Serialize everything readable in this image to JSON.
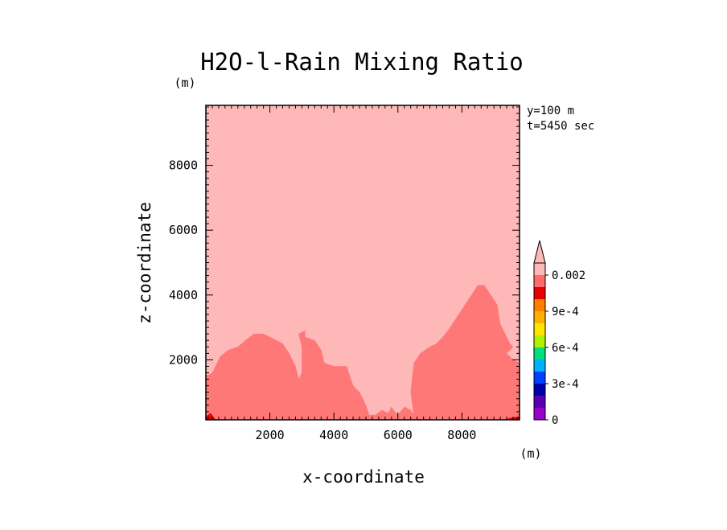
{
  "chart_data": {
    "type": "heatmap",
    "title": "H2O-l-Rain Mixing Ratio",
    "xlabel": "x-coordinate",
    "ylabel": "z-coordinate",
    "x_unit": "(m)",
    "y_unit": "(m)",
    "annotations": [
      "y=100 m",
      "t=5450 sec"
    ],
    "xlim": [
      0,
      9800
    ],
    "ylim": [
      150,
      9850
    ],
    "x_ticks": [
      2000,
      4000,
      6000,
      8000
    ],
    "y_ticks": [
      2000,
      4000,
      6000,
      8000
    ],
    "x_tick_labels": [
      "2000",
      "4000",
      "6000",
      "8000"
    ],
    "y_tick_labels": [
      "2000",
      "4000",
      "6000",
      "8000"
    ],
    "colorbar": {
      "levels": [
        0,
        0.0001,
        0.0002,
        0.0003,
        0.0004,
        0.0005,
        0.0006,
        0.0007,
        0.0008,
        0.0009,
        0.001,
        0.0015,
        0.002
      ],
      "colors": [
        "#9900cc",
        "#5a00b0",
        "#0000a8",
        "#0040ff",
        "#00b0ff",
        "#00e080",
        "#b0f000",
        "#ffe600",
        "#ffb000",
        "#ff7f00",
        "#e60000",
        "#ff6a6a",
        "#ffb8b8"
      ],
      "labels": [
        {
          "value": 0,
          "text": "0"
        },
        {
          "value": 0.0003,
          "text": "3e-4"
        },
        {
          "value": 0.0006,
          "text": "6e-4"
        },
        {
          "value": 0.0009,
          "text": "9e-4"
        },
        {
          "value": 0.002,
          "text": "0.002"
        }
      ],
      "extend": "max"
    },
    "fields": [
      {
        "name": "mixing_ratio_above_0.002",
        "color": "#ffb8b8",
        "polygon": [
          [
            0,
            150
          ],
          [
            9800,
            150
          ],
          [
            9800,
            9850
          ],
          [
            0,
            9850
          ]
        ]
      },
      {
        "name": "mixing_ratio_0.0015_0.002",
        "color": "#ff7878",
        "polygon": [
          [
            0,
            150
          ],
          [
            0,
            1500
          ],
          [
            200,
            1600
          ],
          [
            450,
            2100
          ],
          [
            700,
            2300
          ],
          [
            1000,
            2400
          ],
          [
            1300,
            2650
          ],
          [
            1500,
            2800
          ],
          [
            1800,
            2800
          ],
          [
            2100,
            2650
          ],
          [
            2400,
            2500
          ],
          [
            2600,
            2200
          ],
          [
            2800,
            1800
          ],
          [
            2900,
            1400
          ],
          [
            3000,
            1600
          ],
          [
            3000,
            2400
          ],
          [
            2900,
            2800
          ],
          [
            3100,
            2900
          ],
          [
            3100,
            2700
          ],
          [
            3400,
            2600
          ],
          [
            3600,
            2300
          ],
          [
            3700,
            1900
          ],
          [
            4000,
            1800
          ],
          [
            4400,
            1800
          ],
          [
            4500,
            1500
          ],
          [
            4600,
            1200
          ],
          [
            4800,
            1000
          ],
          [
            5000,
            600
          ],
          [
            5100,
            300
          ],
          [
            5300,
            300
          ],
          [
            5500,
            450
          ],
          [
            5700,
            350
          ],
          [
            5800,
            550
          ],
          [
            5900,
            400
          ],
          [
            6000,
            300
          ],
          [
            6200,
            550
          ],
          [
            6400,
            450
          ],
          [
            6500,
            300
          ],
          [
            6400,
            1000
          ],
          [
            6500,
            1900
          ],
          [
            6700,
            2200
          ],
          [
            7000,
            2400
          ],
          [
            7200,
            2500
          ],
          [
            7400,
            2700
          ],
          [
            7600,
            2950
          ],
          [
            7900,
            3400
          ],
          [
            8100,
            3700
          ],
          [
            8300,
            4000
          ],
          [
            8500,
            4300
          ],
          [
            8700,
            4300
          ],
          [
            8900,
            4000
          ],
          [
            9100,
            3700
          ],
          [
            9200,
            3100
          ],
          [
            9400,
            2700
          ],
          [
            9500,
            2500
          ],
          [
            9600,
            2400
          ],
          [
            9400,
            2200
          ],
          [
            9600,
            2000
          ],
          [
            9800,
            1900
          ],
          [
            9800,
            150
          ]
        ]
      },
      {
        "name": "mixing_ratio_0.001_0.0015",
        "color": "#e60000",
        "polygon": [
          [
            0,
            150
          ],
          [
            0,
            250
          ],
          [
            150,
            350
          ],
          [
            300,
            150
          ]
        ]
      },
      {
        "name": "mixing_ratio_0.001_0.0015_right",
        "color": "#e60000",
        "polygon": [
          [
            9300,
            150
          ],
          [
            9500,
            200
          ],
          [
            9800,
            250
          ],
          [
            9800,
            150
          ]
        ]
      }
    ]
  }
}
